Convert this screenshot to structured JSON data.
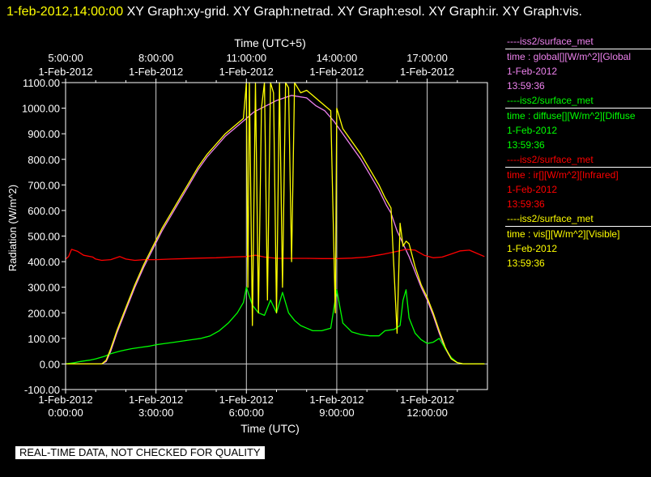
{
  "header": {
    "date_time": "1-feb-2012,14:00:00",
    "graphs_text": "XY Graph:xy-grid.  XY Graph:netrad.  XY Graph:esol.  XY Graph:ir.  XY Graph:vis."
  },
  "legend": [
    {
      "source": "----iss2/surface_met",
      "field": "time : global[][W/m^2][Global",
      "date": "1-Feb-2012",
      "time": "13:59:36",
      "color": "#ee82ee"
    },
    {
      "source": "----iss2/surface_met",
      "field": "time : diffuse[][W/m^2][Diffuse",
      "date": "1-Feb-2012",
      "time": "13:59:36",
      "color": "#00ff00"
    },
    {
      "source": "----iss2/surface_met",
      "field": "time : ir[][W/m^2][Infrared]",
      "date": "1-Feb-2012",
      "time": "13:59:36",
      "color": "#ff0000"
    },
    {
      "source": "----iss2/surface_met",
      "field": "time : vis[][W/m^2][Visible]",
      "date": "1-Feb-2012",
      "time": "13:59:36",
      "color": "#ffff00"
    }
  ],
  "qc_note": "REAL-TIME DATA, NOT CHECKED FOR QUALITY",
  "chart_data": {
    "type": "line",
    "xlabel": "Time (UTC)",
    "x2label": "Time (UTC+5)",
    "ylabel": "Radiation (W/m^2)",
    "xlim": [
      0,
      14
    ],
    "ylim": [
      -100,
      1100
    ],
    "yticks": [
      -100,
      0,
      100,
      200,
      300,
      400,
      500,
      600,
      700,
      800,
      900,
      1000,
      1100
    ],
    "ytick_labels": [
      "-100.00",
      "0.00",
      "100.00",
      "200.00",
      "300.00",
      "400.00",
      "500.00",
      "600.00",
      "700.00",
      "800.00",
      "900.00",
      "1000.00",
      "1100.00"
    ],
    "xticks_bottom": [
      {
        "x": 0,
        "date": "1-Feb-2012",
        "time": "0:00:00"
      },
      {
        "x": 3,
        "date": "1-Feb-2012",
        "time": "3:00:00"
      },
      {
        "x": 6,
        "date": "1-Feb-2012",
        "time": "6:00:00"
      },
      {
        "x": 9,
        "date": "1-Feb-2012",
        "time": "9:00:00"
      },
      {
        "x": 12,
        "date": "1-Feb-2012",
        "time": "12:00:00"
      }
    ],
    "xticks_top": [
      {
        "x": 0,
        "date": "1-Feb-2012",
        "time": "5:00:00"
      },
      {
        "x": 3,
        "date": "1-Feb-2012",
        "time": "8:00:00"
      },
      {
        "x": 6,
        "date": "1-Feb-2012",
        "time": "11:00:00"
      },
      {
        "x": 9,
        "date": "1-Feb-2012",
        "time": "14:00:00"
      },
      {
        "x": 12,
        "date": "1-Feb-2012",
        "time": "17:00:00"
      }
    ],
    "grid": true,
    "series": [
      {
        "name": "global",
        "color": "#ee82ee",
        "points": [
          [
            0,
            0
          ],
          [
            1.2,
            0
          ],
          [
            1.35,
            10
          ],
          [
            1.5,
            50
          ],
          [
            1.7,
            120
          ],
          [
            2.0,
            210
          ],
          [
            2.3,
            300
          ],
          [
            2.6,
            380
          ],
          [
            2.9,
            450
          ],
          [
            3.2,
            520
          ],
          [
            3.5,
            580
          ],
          [
            3.8,
            640
          ],
          [
            4.1,
            700
          ],
          [
            4.4,
            760
          ],
          [
            4.7,
            810
          ],
          [
            5.0,
            850
          ],
          [
            5.3,
            890
          ],
          [
            5.6,
            920
          ],
          [
            5.9,
            950
          ],
          [
            6.1,
            970
          ],
          [
            6.25,
            985
          ],
          [
            6.5,
            1000
          ],
          [
            7.0,
            1030
          ],
          [
            7.5,
            1050
          ],
          [
            8.0,
            1040
          ],
          [
            8.3,
            1010
          ],
          [
            8.6,
            990
          ],
          [
            8.9,
            950
          ],
          [
            9.2,
            900
          ],
          [
            9.5,
            850
          ],
          [
            9.8,
            800
          ],
          [
            10.1,
            740
          ],
          [
            10.4,
            680
          ],
          [
            10.65,
            620
          ],
          [
            10.8,
            590
          ],
          [
            11.0,
            520
          ],
          [
            11.2,
            470
          ],
          [
            11.4,
            420
          ],
          [
            11.6,
            360
          ],
          [
            11.8,
            300
          ],
          [
            12.0,
            250
          ],
          [
            12.2,
            190
          ],
          [
            12.4,
            120
          ],
          [
            12.6,
            60
          ],
          [
            12.8,
            20
          ],
          [
            13.0,
            5
          ],
          [
            13.2,
            0
          ],
          [
            13.9,
            0
          ]
        ]
      },
      {
        "name": "diffuse",
        "color": "#00ff00",
        "points": [
          [
            0,
            0
          ],
          [
            0.3,
            5
          ],
          [
            0.5,
            10
          ],
          [
            0.8,
            15
          ],
          [
            1.0,
            20
          ],
          [
            1.3,
            30
          ],
          [
            1.5,
            40
          ],
          [
            1.8,
            50
          ],
          [
            2.0,
            55
          ],
          [
            2.2,
            60
          ],
          [
            2.5,
            65
          ],
          [
            2.8,
            70
          ],
          [
            3.0,
            75
          ],
          [
            3.3,
            80
          ],
          [
            3.6,
            85
          ],
          [
            3.9,
            90
          ],
          [
            4.2,
            95
          ],
          [
            4.5,
            100
          ],
          [
            4.8,
            110
          ],
          [
            5.1,
            130
          ],
          [
            5.4,
            160
          ],
          [
            5.7,
            200
          ],
          [
            5.9,
            240
          ],
          [
            6.0,
            300
          ],
          [
            6.2,
            230
          ],
          [
            6.4,
            200
          ],
          [
            6.6,
            190
          ],
          [
            6.8,
            250
          ],
          [
            7.0,
            200
          ],
          [
            7.2,
            280
          ],
          [
            7.4,
            200
          ],
          [
            7.6,
            170
          ],
          [
            7.8,
            150
          ],
          [
            8.0,
            140
          ],
          [
            8.2,
            130
          ],
          [
            8.5,
            130
          ],
          [
            8.8,
            140
          ],
          [
            9.0,
            290
          ],
          [
            9.2,
            160
          ],
          [
            9.5,
            125
          ],
          [
            9.8,
            115
          ],
          [
            10.1,
            110
          ],
          [
            10.4,
            110
          ],
          [
            10.6,
            130
          ],
          [
            10.9,
            135
          ],
          [
            11.1,
            150
          ],
          [
            11.2,
            250
          ],
          [
            11.3,
            290
          ],
          [
            11.4,
            180
          ],
          [
            11.6,
            120
          ],
          [
            11.8,
            95
          ],
          [
            12.0,
            80
          ],
          [
            12.2,
            85
          ],
          [
            12.4,
            100
          ],
          [
            12.6,
            60
          ],
          [
            12.8,
            25
          ],
          [
            13.0,
            5
          ],
          [
            13.2,
            0
          ],
          [
            13.9,
            0
          ]
        ]
      },
      {
        "name": "infrared",
        "color": "#ff0000",
        "points": [
          [
            0,
            410
          ],
          [
            0.1,
            420
          ],
          [
            0.2,
            448
          ],
          [
            0.4,
            440
          ],
          [
            0.6,
            425
          ],
          [
            0.9,
            418
          ],
          [
            1.0,
            410
          ],
          [
            1.2,
            405
          ],
          [
            1.5,
            408
          ],
          [
            1.8,
            420
          ],
          [
            2.0,
            410
          ],
          [
            2.3,
            405
          ],
          [
            2.6,
            408
          ],
          [
            3.0,
            408
          ],
          [
            3.5,
            410
          ],
          [
            4.0,
            412
          ],
          [
            4.5,
            414
          ],
          [
            5.0,
            415
          ],
          [
            5.5,
            418
          ],
          [
            6.0,
            420
          ],
          [
            6.3,
            425
          ],
          [
            6.6,
            418
          ],
          [
            7.0,
            413
          ],
          [
            7.5,
            413
          ],
          [
            8.0,
            413
          ],
          [
            8.5,
            412
          ],
          [
            9.0,
            412
          ],
          [
            9.5,
            414
          ],
          [
            10.0,
            418
          ],
          [
            10.5,
            428
          ],
          [
            11.0,
            440
          ],
          [
            11.3,
            448
          ],
          [
            11.6,
            445
          ],
          [
            11.9,
            425
          ],
          [
            12.2,
            415
          ],
          [
            12.5,
            418
          ],
          [
            12.8,
            430
          ],
          [
            13.1,
            442
          ],
          [
            13.4,
            445
          ],
          [
            13.6,
            435
          ],
          [
            13.9,
            420
          ]
        ]
      },
      {
        "name": "visible",
        "color": "#ffff00",
        "points": [
          [
            0,
            0
          ],
          [
            1.2,
            0
          ],
          [
            1.35,
            15
          ],
          [
            1.5,
            60
          ],
          [
            1.7,
            130
          ],
          [
            2.0,
            220
          ],
          [
            2.3,
            310
          ],
          [
            2.6,
            390
          ],
          [
            2.9,
            460
          ],
          [
            3.2,
            530
          ],
          [
            3.5,
            590
          ],
          [
            3.8,
            650
          ],
          [
            4.1,
            710
          ],
          [
            4.4,
            770
          ],
          [
            4.7,
            820
          ],
          [
            5.0,
            860
          ],
          [
            5.3,
            900
          ],
          [
            5.6,
            930
          ],
          [
            5.9,
            960
          ],
          [
            6.0,
            1100
          ],
          [
            6.05,
            300
          ],
          [
            6.1,
            1100
          ],
          [
            6.2,
            150
          ],
          [
            6.3,
            1100
          ],
          [
            6.4,
            200
          ],
          [
            6.5,
            1000
          ],
          [
            6.6,
            1100
          ],
          [
            6.7,
            250
          ],
          [
            6.8,
            1100
          ],
          [
            6.9,
            1060
          ],
          [
            7.0,
            200
          ],
          [
            7.1,
            1100
          ],
          [
            7.2,
            300
          ],
          [
            7.3,
            1100
          ],
          [
            7.4,
            1080
          ],
          [
            7.5,
            400
          ],
          [
            7.6,
            1100
          ],
          [
            7.8,
            1060
          ],
          [
            8.0,
            1070
          ],
          [
            8.2,
            1050
          ],
          [
            8.4,
            1030
          ],
          [
            8.6,
            1010
          ],
          [
            8.8,
            990
          ],
          [
            8.95,
            200
          ],
          [
            9.0,
            1000
          ],
          [
            9.2,
            920
          ],
          [
            9.5,
            870
          ],
          [
            9.8,
            820
          ],
          [
            10.1,
            760
          ],
          [
            10.4,
            700
          ],
          [
            10.6,
            650
          ],
          [
            10.8,
            610
          ],
          [
            11.0,
            120
          ],
          [
            11.1,
            550
          ],
          [
            11.2,
            460
          ],
          [
            11.3,
            480
          ],
          [
            11.4,
            470
          ],
          [
            11.6,
            380
          ],
          [
            11.8,
            310
          ],
          [
            12.0,
            260
          ],
          [
            12.2,
            200
          ],
          [
            12.4,
            130
          ],
          [
            12.6,
            65
          ],
          [
            12.8,
            20
          ],
          [
            13.0,
            5
          ],
          [
            13.2,
            0
          ],
          [
            13.9,
            0
          ]
        ]
      }
    ]
  }
}
